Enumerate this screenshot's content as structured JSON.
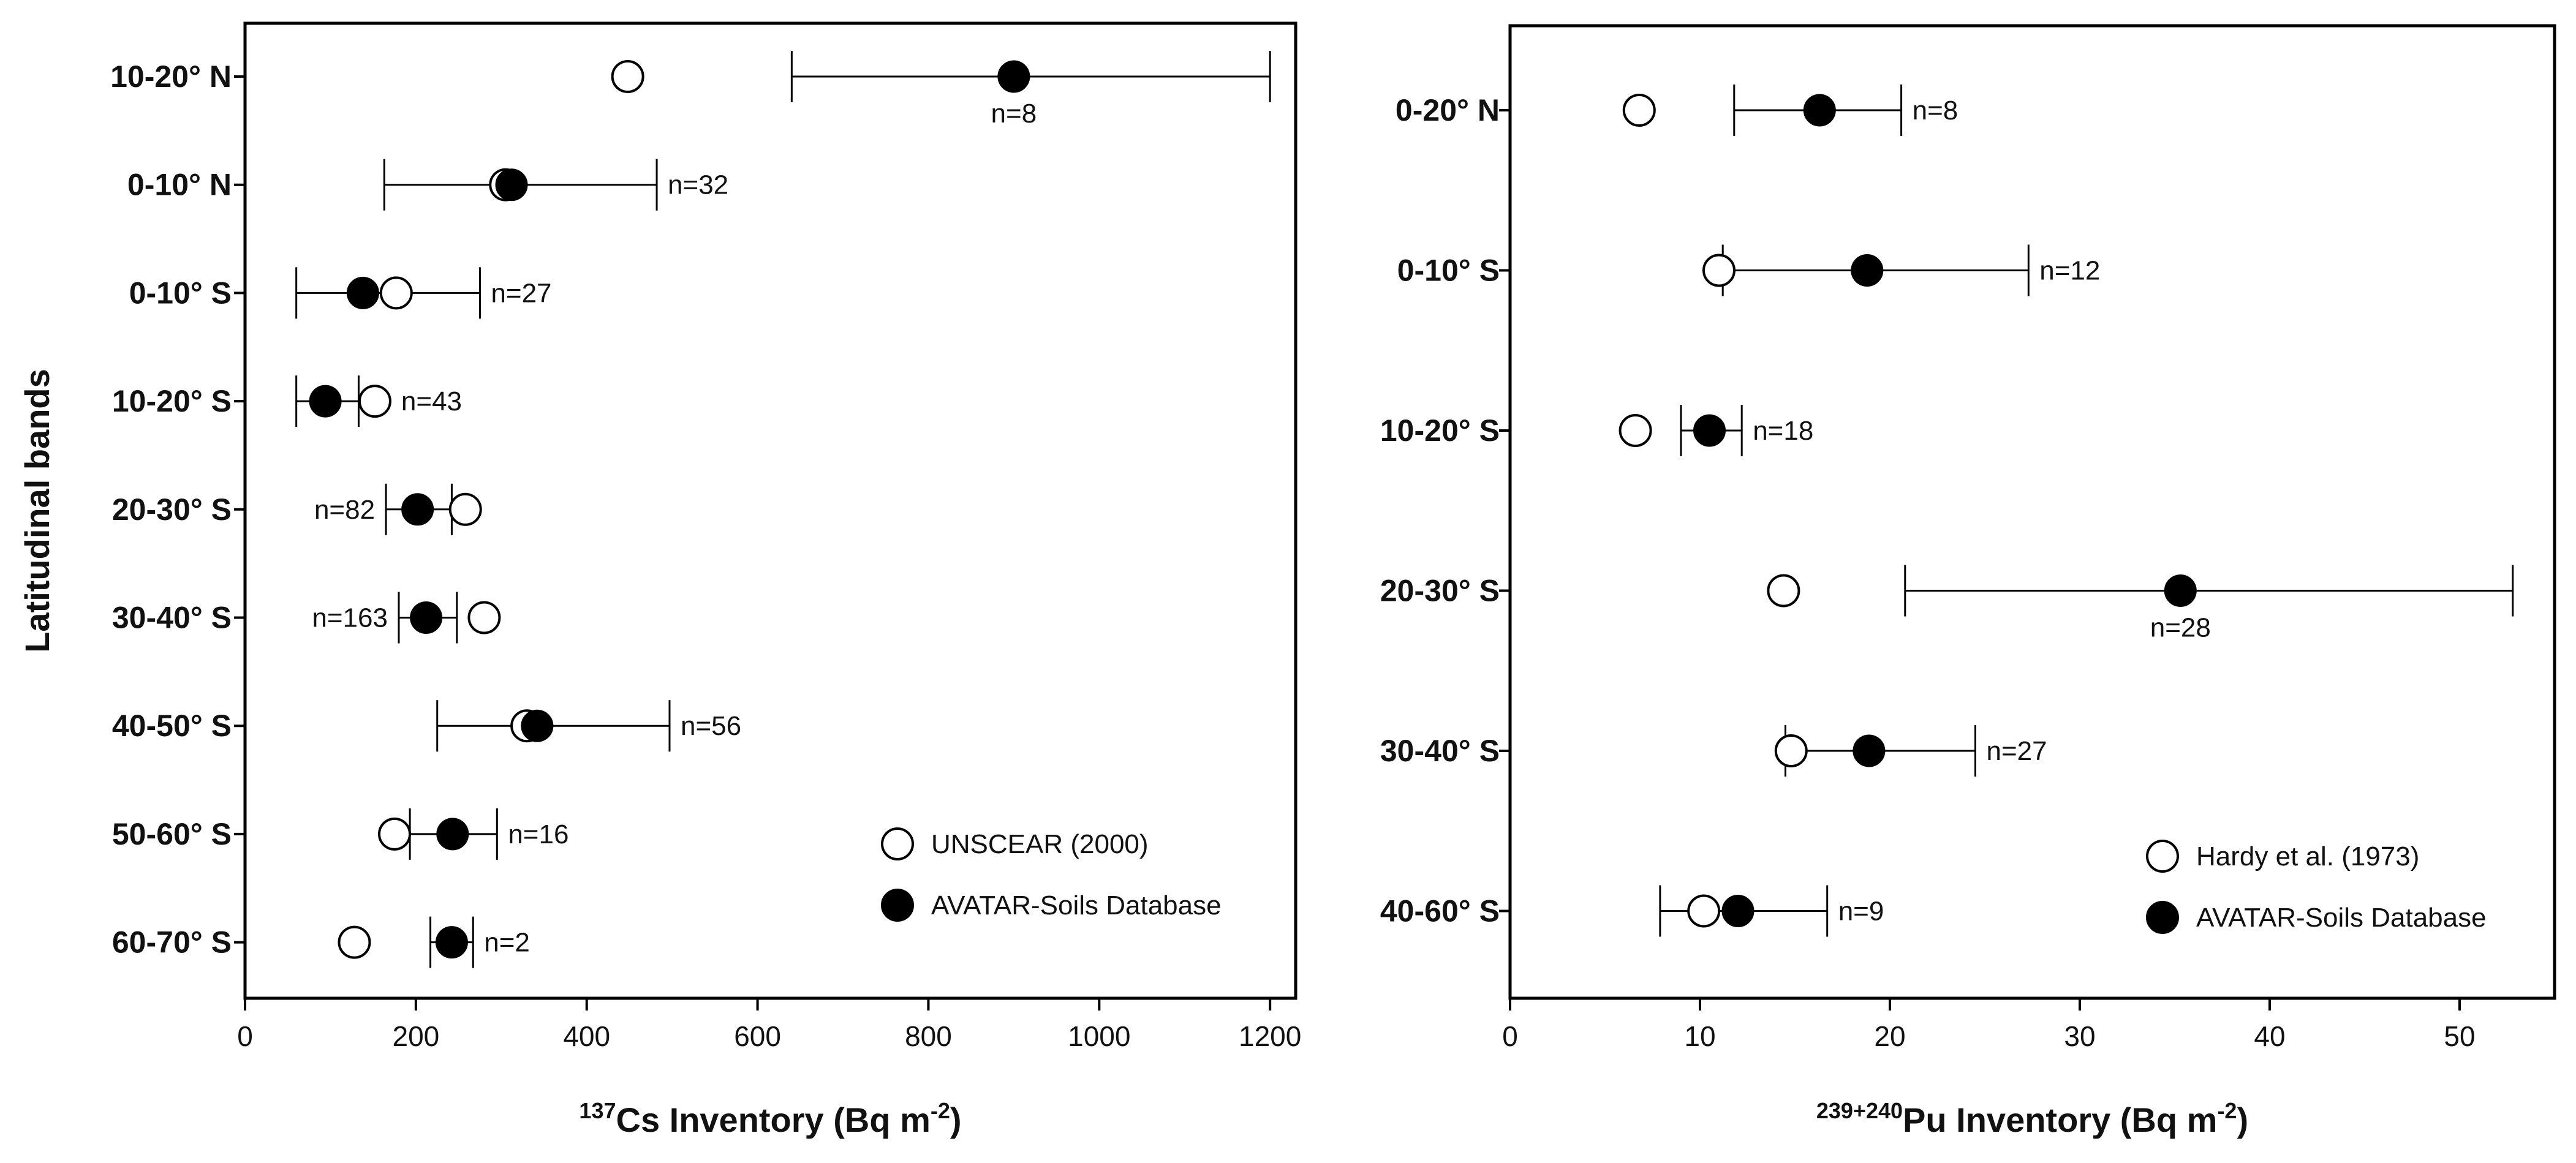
{
  "chart_data": [
    {
      "type": "scatter",
      "title": "",
      "ylabel": "Latitudinal bands",
      "xlabel_sup": "137",
      "xlabel_main": "Cs Inventory (Bq m",
      "xlabel_unit_sup": "-2",
      "xlabel_close": ")",
      "xlim": [
        0,
        1230
      ],
      "xticks": [
        0,
        200,
        400,
        600,
        800,
        1000,
        1200
      ],
      "categories": [
        "10-20° N",
        "0-10° N",
        "0-10° S",
        "10-20° S",
        "20-30° S",
        "30-40° S",
        "40-50° S",
        "50-60° S",
        "60-70° S"
      ],
      "series": [
        {
          "name": "UNSCEAR (2000)",
          "marker": "open-circle",
          "values": [
            448,
            305,
            177,
            152,
            258,
            280,
            330,
            175,
            128
          ]
        },
        {
          "name": "AVATAR-Soils Database",
          "marker": "filled-circle",
          "values": [
            900,
            312,
            138,
            94,
            202,
            212,
            342,
            243,
            242
          ],
          "err_low": [
            640,
            163,
            60,
            60,
            165,
            180,
            225,
            193,
            217
          ],
          "err_high": [
            1200,
            482,
            275,
            133,
            242,
            248,
            497,
            295,
            267
          ],
          "n_labels": [
            "n=8",
            "n=32",
            "n=27",
            "n=43",
            "n=82",
            "n=163",
            "n=56",
            "n=16",
            "n=2"
          ],
          "n_pos": [
            "below",
            "right",
            "right",
            "right",
            "left",
            "left",
            "right",
            "right",
            "right"
          ]
        }
      ],
      "legend_position": "bottom-right",
      "grid": false
    },
    {
      "type": "scatter",
      "title": "",
      "ylabel": "",
      "xlabel_sup": "239+240",
      "xlabel_main": "Pu Inventory (Bq m",
      "xlabel_unit_sup": "-2",
      "xlabel_close": ")",
      "xlim": [
        0,
        55
      ],
      "xticks": [
        0,
        10,
        20,
        30,
        40,
        50
      ],
      "categories": [
        "0-20° N",
        "0-10° S",
        "10-20° S",
        "20-30° S",
        "30-40° S",
        "40-60° S"
      ],
      "series": [
        {
          "name": "Hardy et al. (1973)",
          "marker": "open-circle",
          "values": [
            6.8,
            11.0,
            6.6,
            14.4,
            14.8,
            10.2
          ]
        },
        {
          "name": "AVATAR-Soils Database",
          "marker": "filled-circle",
          "values": [
            16.3,
            18.8,
            10.5,
            35.3,
            18.9,
            12.0
          ],
          "err_low": [
            11.8,
            11.2,
            9.0,
            20.8,
            14.5,
            7.9
          ],
          "err_high": [
            20.6,
            27.3,
            12.2,
            52.8,
            24.5,
            16.7
          ],
          "n_labels": [
            "n=8",
            "n=12",
            "n=18",
            "n=28",
            "n=27",
            "n=9"
          ],
          "n_pos": [
            "right",
            "right",
            "right",
            "below",
            "right",
            "right"
          ]
        }
      ],
      "legend_position": "bottom-right",
      "grid": false
    }
  ]
}
